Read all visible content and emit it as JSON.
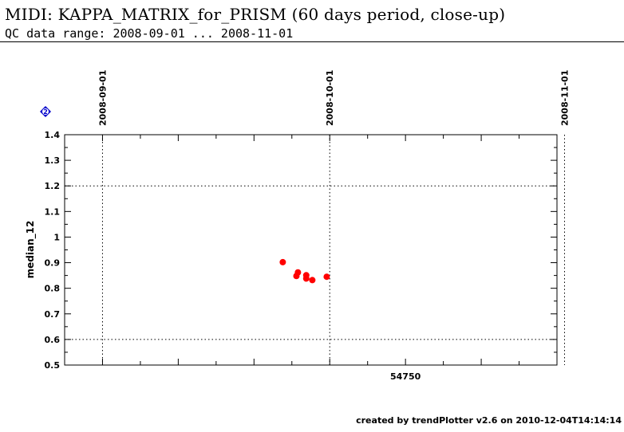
{
  "header": {
    "title": "MIDI: KAPPA_MATRIX_for_PRISM (60 days period, close-up)",
    "subtitle": "QC data range: 2008-09-01 ... 2008-11-01"
  },
  "footer": {
    "text": "created by trendPlotter v2.6 on 2010-12-04T14:14:14"
  },
  "marker_icon": {
    "name": "diamond-2-icon",
    "label": "2",
    "color": "#0000cc"
  },
  "chart_data": {
    "type": "scatter",
    "title": "",
    "xlabel": "",
    "ylabel": "median_12",
    "xlim": [
      54705,
      54770
    ],
    "ylim": [
      0.5,
      1.4
    ],
    "xticks": [
      54750
    ],
    "yticks": [
      0.5,
      0.6,
      0.7,
      0.8,
      0.9,
      1.0,
      1.1,
      1.2,
      1.3,
      1.4
    ],
    "ytick_labels": [
      "0.5",
      "0.6",
      "0.7",
      "0.8",
      "0.9",
      "1",
      "1.1",
      "1.2",
      "1.3",
      "1.4"
    ],
    "reference_lines_y": [
      0.6,
      1.2
    ],
    "date_markers": [
      {
        "label": "2008-09-01",
        "mjd": 54710
      },
      {
        "label": "2008-10-01",
        "mjd": 54740
      },
      {
        "label": "2008-11-01",
        "mjd": 54771
      }
    ],
    "grid": false,
    "series": [
      {
        "color": "#ff0000",
        "points": [
          {
            "x": 54733.8,
            "y": 0.902
          },
          {
            "x": 54735.8,
            "y": 0.862
          },
          {
            "x": 54735.6,
            "y": 0.848
          },
          {
            "x": 54736.9,
            "y": 0.851
          },
          {
            "x": 54736.9,
            "y": 0.838
          },
          {
            "x": 54737.7,
            "y": 0.832
          },
          {
            "x": 54739.6,
            "y": 0.845
          }
        ]
      }
    ]
  }
}
